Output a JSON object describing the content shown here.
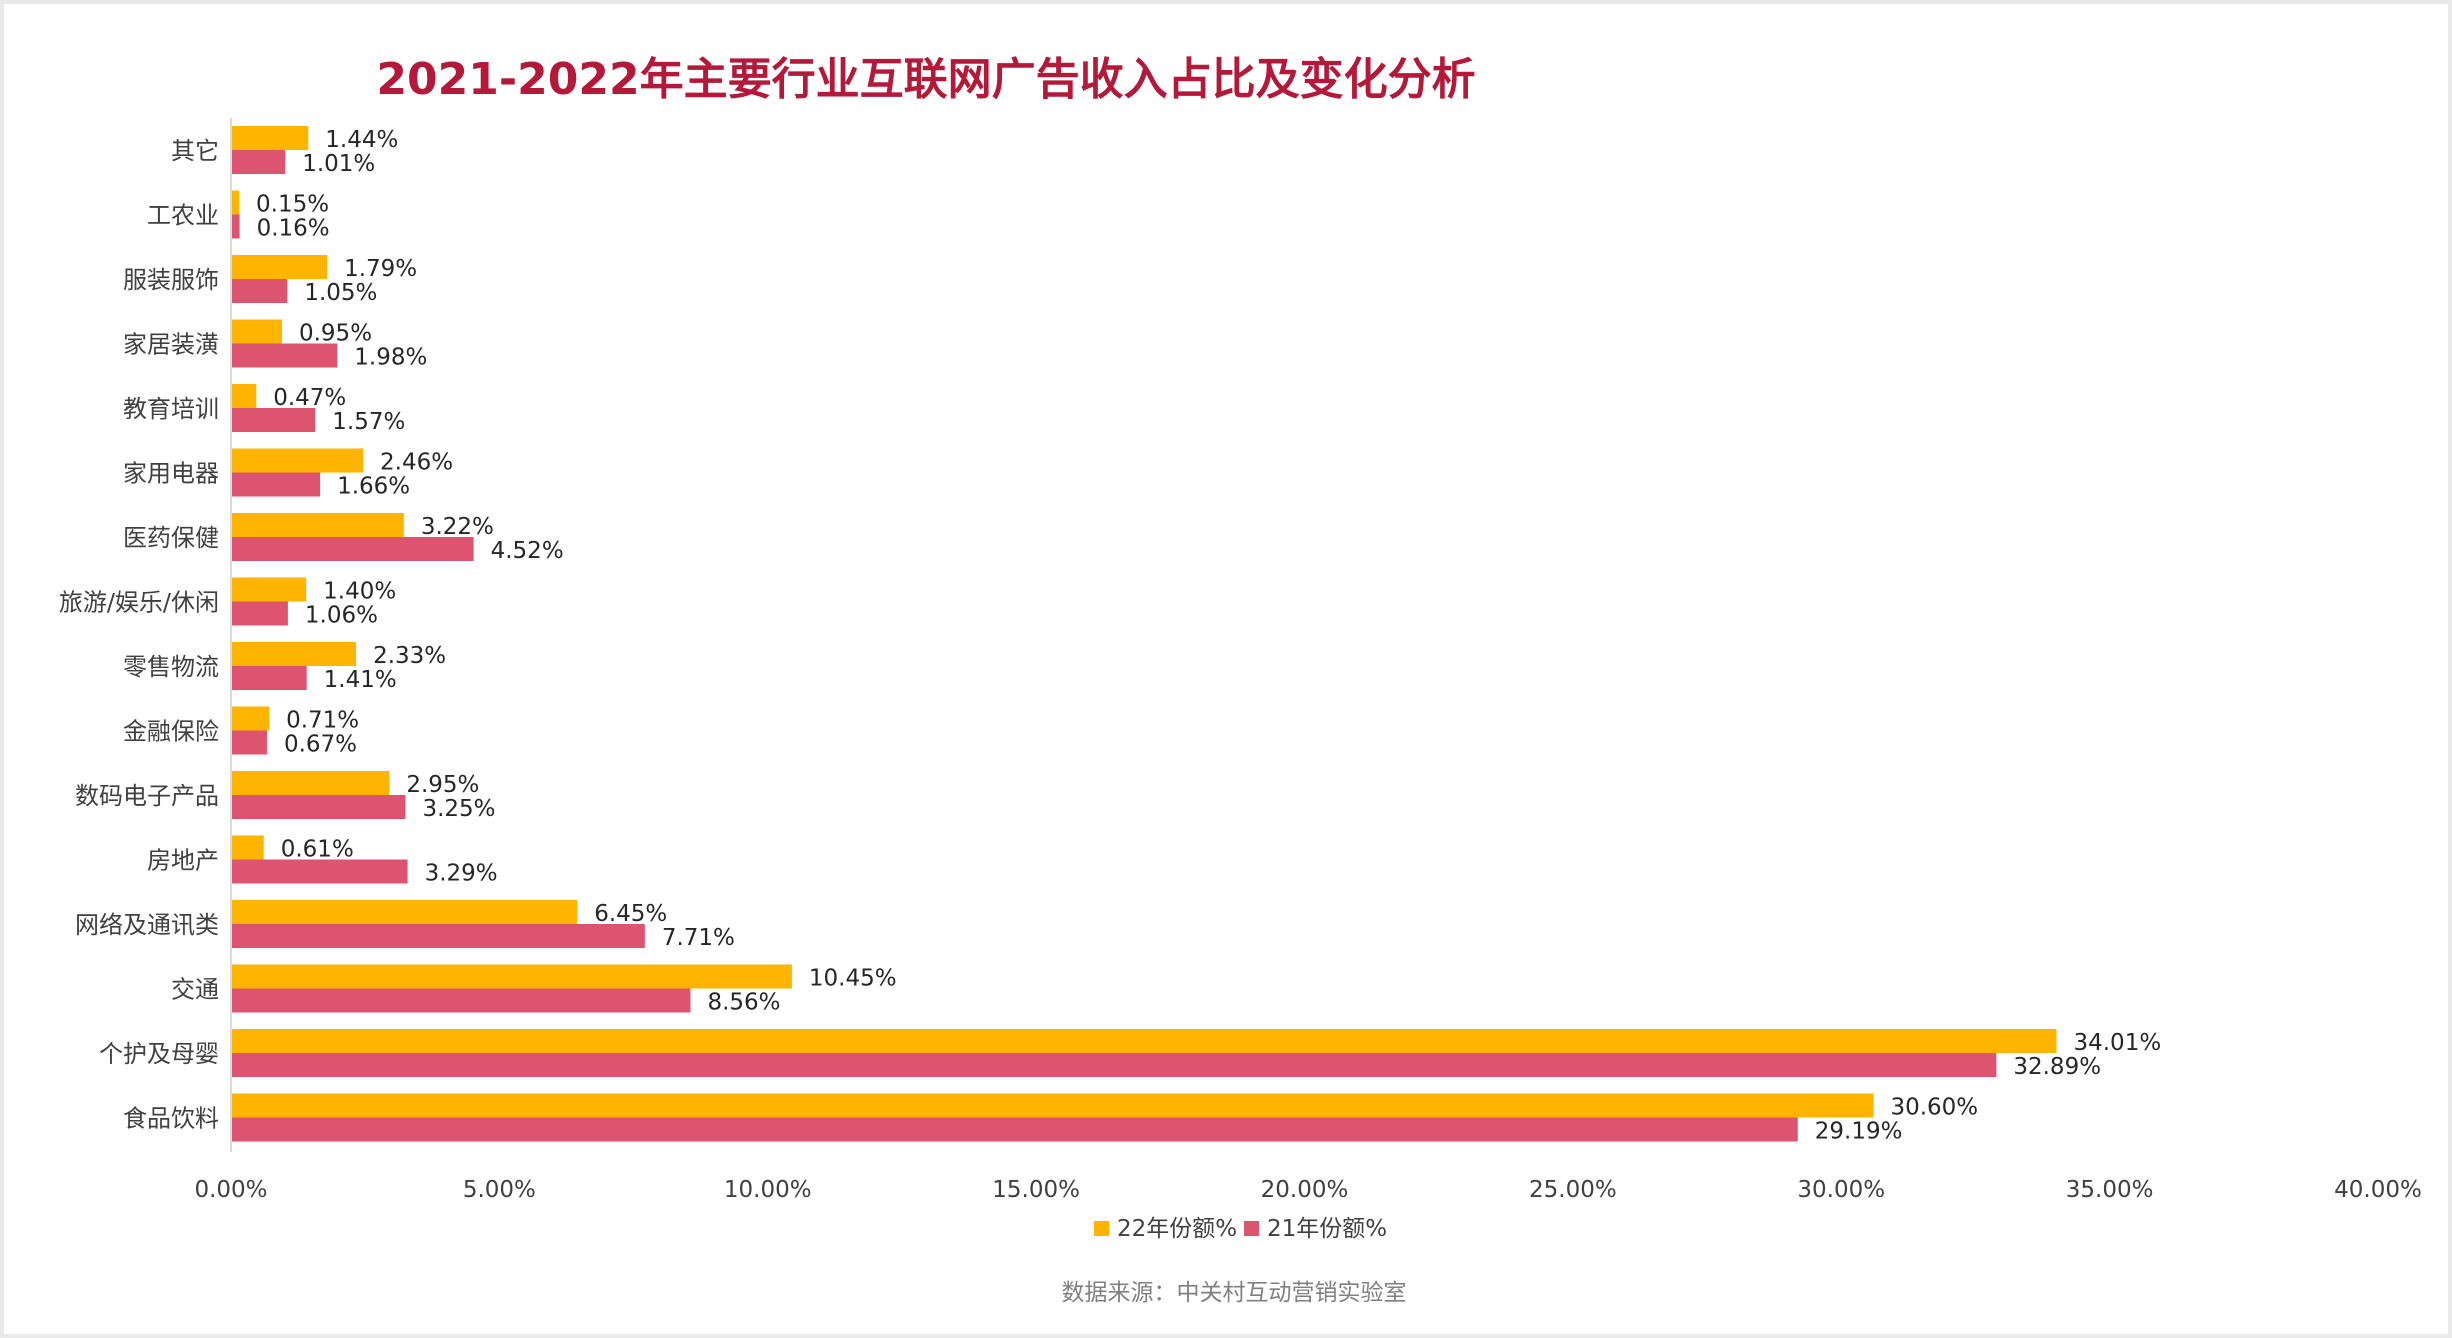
{
  "chart_data": {
    "type": "bar",
    "orientation": "horizontal",
    "title": "2021-2022年主要行业互联网广告收入占比及变化分析",
    "categories": [
      "其它",
      "工农业",
      "服装服饰",
      "家居装潢",
      "教育培训",
      "家用电器",
      "医药保健",
      "旅游/娱乐/休闲",
      "零售物流",
      "金融保险",
      "数码电子产品",
      "房地产",
      "网络及通讯类",
      "交通",
      "个护及母婴",
      "食品饮料"
    ],
    "series": [
      {
        "name": "22年份额%",
        "color": "#ffb400",
        "values": [
          1.44,
          0.15,
          1.79,
          0.95,
          0.47,
          2.46,
          3.22,
          1.4,
          2.33,
          0.71,
          2.95,
          0.61,
          6.45,
          10.45,
          34.01,
          30.6
        ],
        "labels": [
          "1.44%",
          "0.15%",
          "1.79%",
          "0.95%",
          "0.47%",
          "2.46%",
          "3.22%",
          "1.40%",
          "2.33%",
          "0.71%",
          "2.95%",
          "0.61%",
          "6.45%",
          "10.45%",
          "34.01%",
          "30.60%"
        ]
      },
      {
        "name": "21年份额%",
        "color": "#dd5470",
        "values": [
          1.01,
          0.16,
          1.05,
          1.98,
          1.57,
          1.66,
          4.52,
          1.06,
          1.41,
          0.67,
          3.25,
          3.29,
          7.71,
          8.56,
          32.89,
          29.19
        ],
        "labels": [
          "1.01%",
          "0.16%",
          "1.05%",
          "1.98%",
          "1.57%",
          "1.66%",
          "4.52%",
          "1.06%",
          "1.41%",
          "0.67%",
          "3.25%",
          "3.29%",
          "7.71%",
          "8.56%",
          "32.89%",
          "29.19%"
        ]
      }
    ],
    "xlim": [
      0,
      40
    ],
    "x_ticks": [
      "0.00%",
      "5.00%",
      "10.00%",
      "15.00%",
      "20.00%",
      "25.00%",
      "30.00%",
      "35.00%",
      "40.00%"
    ],
    "grid": false,
    "legend_position": "bottom-center",
    "source_note": "数据来源：中关村互动营销实验室"
  },
  "colors": {
    "title": "#b5193a",
    "axis": "#d9d9d9"
  }
}
